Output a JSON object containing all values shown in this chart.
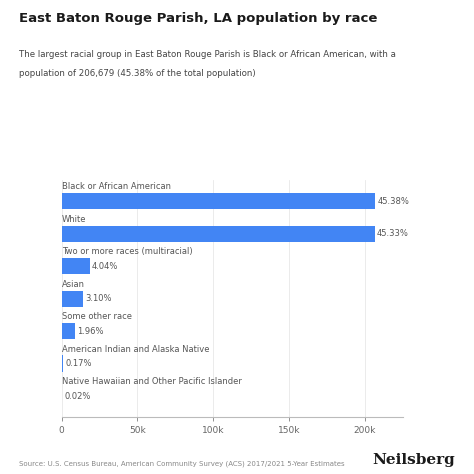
{
  "title": "East Baton Rouge Parish, LA population by race",
  "subtitle_line1": "The largest racial group in East Baton Rouge Parish is Black or African American, with a",
  "subtitle_line2": "population of 206,679 (45.38% of the total population)",
  "categories": [
    "Black or African American",
    "White",
    "Two or more races (multiracial)",
    "Asian",
    "Some other race",
    "American Indian and Alaska Native",
    "Native Hawaiian and Other Pacific Islander"
  ],
  "values": [
    206679,
    206452,
    18393,
    14117,
    8927,
    774,
    91
  ],
  "percentages": [
    "45.38%",
    "45.33%",
    "4.04%",
    "3.10%",
    "1.96%",
    "0.17%",
    "0.02%"
  ],
  "bar_color": "#4285F4",
  "text_color": "#1a1a1a",
  "label_color": "#555555",
  "subtitle_color": "#444444",
  "source_text": "Source: U.S. Census Bureau, American Community Survey (ACS) 2017/2021 5-Year Estimates",
  "brand_text": "Neilsberg",
  "xlim": [
    0,
    225000
  ],
  "xticks": [
    0,
    50000,
    100000,
    150000,
    200000
  ],
  "xtick_labels": [
    "0",
    "50k",
    "100k",
    "150k",
    "200k"
  ],
  "background_color": "#ffffff"
}
